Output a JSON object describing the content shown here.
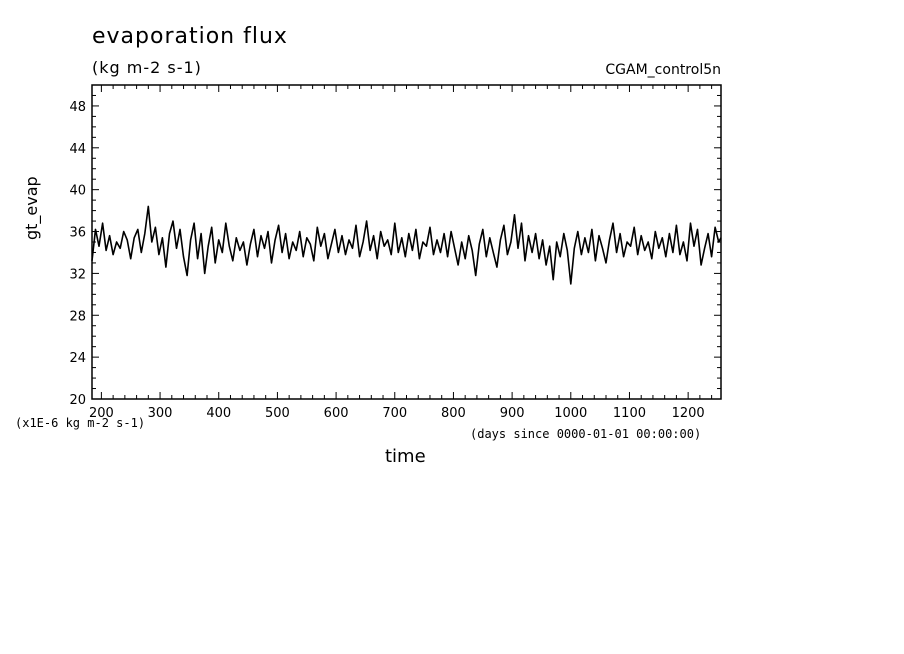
{
  "chart_data": {
    "type": "line",
    "title": "evaporation flux",
    "units": "(kg m-2 s-1)",
    "dataset": "CGAM_control5n",
    "xlabel": "time",
    "x_units": "(days since 0000-01-01 00:00:00)",
    "ylabel": "gt_evap",
    "y_scale_note": "(x1E-6 kg m-2 s-1)",
    "xlim": [
      184,
      1256
    ],
    "ylim": [
      20,
      50
    ],
    "x_ticks": [
      "200",
      "300",
      "400",
      "500",
      "600",
      "700",
      "800",
      "900",
      "1000",
      "1100",
      "1200"
    ],
    "y_ticks": [
      "20",
      "24",
      "28",
      "32",
      "36",
      "40",
      "44",
      "48"
    ],
    "grid": false,
    "series": [
      {
        "values": [
          [
            184,
            33.2
          ],
          [
            190,
            36.2
          ],
          [
            196,
            34.6
          ],
          [
            202,
            36.8
          ],
          [
            208,
            34.2
          ],
          [
            214,
            35.6
          ],
          [
            220,
            33.8
          ],
          [
            226,
            35.0
          ],
          [
            232,
            34.4
          ],
          [
            238,
            36.0
          ],
          [
            244,
            35.2
          ],
          [
            250,
            33.4
          ],
          [
            256,
            35.4
          ],
          [
            262,
            36.2
          ],
          [
            268,
            34.0
          ],
          [
            274,
            35.8
          ],
          [
            280,
            38.4
          ],
          [
            286,
            35.0
          ],
          [
            292,
            36.4
          ],
          [
            298,
            33.8
          ],
          [
            304,
            35.4
          ],
          [
            310,
            32.6
          ],
          [
            316,
            35.8
          ],
          [
            322,
            37.0
          ],
          [
            328,
            34.4
          ],
          [
            334,
            36.2
          ],
          [
            340,
            33.6
          ],
          [
            346,
            31.8
          ],
          [
            352,
            35.2
          ],
          [
            358,
            36.8
          ],
          [
            364,
            33.4
          ],
          [
            370,
            35.8
          ],
          [
            376,
            32.0
          ],
          [
            382,
            34.6
          ],
          [
            388,
            36.4
          ],
          [
            394,
            33.0
          ],
          [
            400,
            35.2
          ],
          [
            406,
            34.0
          ],
          [
            412,
            36.8
          ],
          [
            418,
            34.6
          ],
          [
            424,
            33.2
          ],
          [
            430,
            35.4
          ],
          [
            436,
            34.2
          ],
          [
            442,
            35.0
          ],
          [
            448,
            32.8
          ],
          [
            454,
            34.8
          ],
          [
            460,
            36.2
          ],
          [
            466,
            33.6
          ],
          [
            472,
            35.6
          ],
          [
            478,
            34.4
          ],
          [
            484,
            36.0
          ],
          [
            490,
            33.0
          ],
          [
            496,
            35.2
          ],
          [
            502,
            36.6
          ],
          [
            508,
            34.0
          ],
          [
            514,
            35.8
          ],
          [
            520,
            33.4
          ],
          [
            526,
            35.0
          ],
          [
            532,
            34.2
          ],
          [
            538,
            36.0
          ],
          [
            544,
            33.6
          ],
          [
            550,
            35.4
          ],
          [
            556,
            34.8
          ],
          [
            562,
            33.2
          ],
          [
            568,
            36.4
          ],
          [
            574,
            34.6
          ],
          [
            580,
            35.8
          ],
          [
            586,
            33.4
          ],
          [
            592,
            34.8
          ],
          [
            598,
            36.2
          ],
          [
            604,
            34.0
          ],
          [
            610,
            35.6
          ],
          [
            616,
            33.8
          ],
          [
            622,
            35.2
          ],
          [
            628,
            34.4
          ],
          [
            634,
            36.6
          ],
          [
            640,
            33.6
          ],
          [
            646,
            35.0
          ],
          [
            652,
            37.0
          ],
          [
            658,
            34.2
          ],
          [
            664,
            35.6
          ],
          [
            670,
            33.4
          ],
          [
            676,
            36.0
          ],
          [
            682,
            34.6
          ],
          [
            688,
            35.2
          ],
          [
            694,
            33.8
          ],
          [
            700,
            36.8
          ],
          [
            706,
            34.0
          ],
          [
            712,
            35.4
          ],
          [
            718,
            33.6
          ],
          [
            724,
            35.8
          ],
          [
            730,
            34.2
          ],
          [
            736,
            36.2
          ],
          [
            742,
            33.4
          ],
          [
            748,
            35.0
          ],
          [
            754,
            34.6
          ],
          [
            760,
            36.4
          ],
          [
            766,
            33.8
          ],
          [
            772,
            35.2
          ],
          [
            778,
            34.0
          ],
          [
            784,
            35.8
          ],
          [
            790,
            33.6
          ],
          [
            796,
            36.0
          ],
          [
            802,
            34.4
          ],
          [
            808,
            32.8
          ],
          [
            814,
            35.0
          ],
          [
            820,
            33.4
          ],
          [
            826,
            35.6
          ],
          [
            832,
            34.2
          ],
          [
            838,
            31.8
          ],
          [
            844,
            34.8
          ],
          [
            850,
            36.2
          ],
          [
            856,
            33.6
          ],
          [
            862,
            35.4
          ],
          [
            868,
            34.0
          ],
          [
            874,
            32.6
          ],
          [
            880,
            35.2
          ],
          [
            886,
            36.6
          ],
          [
            892,
            33.8
          ],
          [
            898,
            35.0
          ],
          [
            904,
            37.6
          ],
          [
            910,
            34.4
          ],
          [
            916,
            36.8
          ],
          [
            922,
            33.2
          ],
          [
            928,
            35.6
          ],
          [
            934,
            34.0
          ],
          [
            940,
            35.8
          ],
          [
            946,
            33.4
          ],
          [
            952,
            35.2
          ],
          [
            958,
            32.8
          ],
          [
            964,
            34.6
          ],
          [
            970,
            31.4
          ],
          [
            976,
            35.0
          ],
          [
            982,
            33.6
          ],
          [
            988,
            35.8
          ],
          [
            994,
            34.2
          ],
          [
            1000,
            31.0
          ],
          [
            1006,
            34.4
          ],
          [
            1012,
            36.0
          ],
          [
            1018,
            33.8
          ],
          [
            1024,
            35.4
          ],
          [
            1030,
            34.0
          ],
          [
            1036,
            36.2
          ],
          [
            1042,
            33.2
          ],
          [
            1048,
            35.6
          ],
          [
            1054,
            34.4
          ],
          [
            1060,
            33.0
          ],
          [
            1066,
            35.2
          ],
          [
            1072,
            36.8
          ],
          [
            1078,
            34.0
          ],
          [
            1084,
            35.8
          ],
          [
            1090,
            33.6
          ],
          [
            1096,
            35.0
          ],
          [
            1102,
            34.6
          ],
          [
            1108,
            36.4
          ],
          [
            1114,
            33.8
          ],
          [
            1120,
            35.6
          ],
          [
            1126,
            34.2
          ],
          [
            1132,
            35.0
          ],
          [
            1138,
            33.4
          ],
          [
            1144,
            36.0
          ],
          [
            1150,
            34.4
          ],
          [
            1156,
            35.4
          ],
          [
            1162,
            33.6
          ],
          [
            1168,
            35.8
          ],
          [
            1174,
            34.0
          ],
          [
            1180,
            36.6
          ],
          [
            1186,
            33.8
          ],
          [
            1192,
            35.0
          ],
          [
            1198,
            33.2
          ],
          [
            1204,
            36.8
          ],
          [
            1210,
            34.6
          ],
          [
            1216,
            36.2
          ],
          [
            1222,
            32.8
          ],
          [
            1228,
            34.4
          ],
          [
            1234,
            35.8
          ],
          [
            1240,
            33.6
          ],
          [
            1246,
            36.4
          ],
          [
            1252,
            35.0
          ],
          [
            1256,
            35.4
          ]
        ]
      }
    ]
  }
}
